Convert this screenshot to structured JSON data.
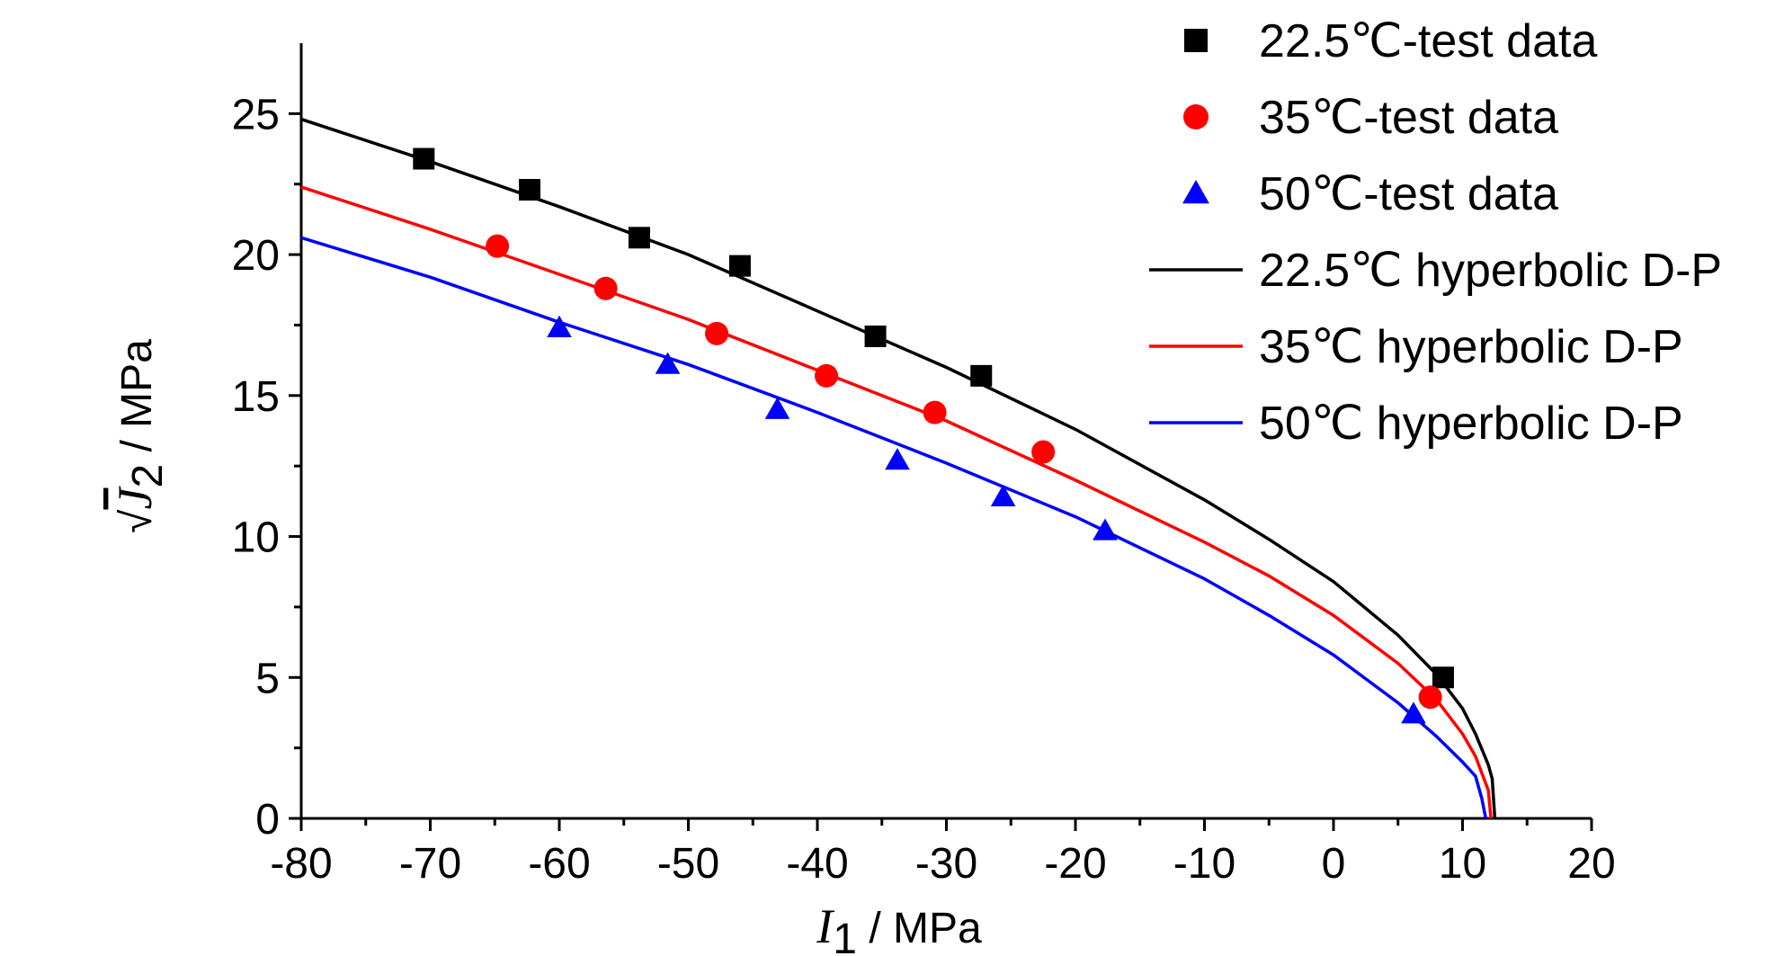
{
  "chart_data": {
    "type": "scatter",
    "xlabel": {
      "symbol": "I",
      "subscript": "1",
      "unit": " / MPa"
    },
    "ylabel": {
      "radical": "√",
      "symbol": "J",
      "subscript": "2",
      "unit": " / MPa"
    },
    "xlim": [
      -80,
      20
    ],
    "ylim": [
      0,
      27.5
    ],
    "xticks": [
      -80,
      -70,
      -60,
      -50,
      -40,
      -30,
      -20,
      -10,
      0,
      10,
      20
    ],
    "yticks": [
      0,
      5,
      10,
      15,
      20,
      25
    ],
    "grid": false,
    "legend_position": "top-right",
    "series": [
      {
        "name": "22.5℃-test data",
        "kind": "points",
        "marker": "square",
        "color": "#000000",
        "x": [
          -70.5,
          -62.3,
          -53.8,
          -46.0,
          -35.5,
          -27.3,
          8.5
        ],
        "y": [
          23.4,
          22.3,
          20.6,
          19.6,
          17.1,
          15.7,
          5.0
        ]
      },
      {
        "name": "35℃-test data",
        "kind": "points",
        "marker": "circle",
        "color": "#ff0000",
        "x": [
          -64.8,
          -56.4,
          -47.8,
          -39.3,
          -30.9,
          -22.5,
          7.5
        ],
        "y": [
          20.3,
          18.8,
          17.2,
          15.7,
          14.4,
          13.0,
          4.3
        ]
      },
      {
        "name": "50℃-test data",
        "kind": "points",
        "marker": "triangle",
        "color": "#0000ff",
        "x": [
          -60.0,
          -51.6,
          -43.1,
          -33.8,
          -25.6,
          -17.7,
          6.2
        ],
        "y": [
          17.4,
          16.1,
          14.5,
          12.7,
          11.4,
          10.2,
          3.7
        ]
      },
      {
        "name": "22.5℃ hyperbolic D-P",
        "kind": "line",
        "color": "#000000",
        "x": [
          -80,
          -70,
          -60,
          -50,
          -40,
          -30,
          -20,
          -10,
          -5,
          0,
          5,
          8,
          10,
          11,
          12,
          12.3,
          12.5
        ],
        "y": [
          24.8,
          23.3,
          21.7,
          20.0,
          18.0,
          16.0,
          13.8,
          11.3,
          9.9,
          8.4,
          6.5,
          5.1,
          3.9,
          3.0,
          1.9,
          1.4,
          0.0
        ]
      },
      {
        "name": "35℃ hyperbolic D-P",
        "kind": "line",
        "color": "#ff0000",
        "x": [
          -80,
          -70,
          -60,
          -50,
          -40,
          -30,
          -20,
          -10,
          -5,
          0,
          5,
          8,
          10,
          11,
          12,
          12.2
        ],
        "y": [
          22.4,
          20.9,
          19.3,
          17.7,
          15.9,
          14.1,
          12.0,
          9.8,
          8.6,
          7.2,
          5.5,
          4.2,
          3.0,
          2.2,
          1.0,
          0.0
        ]
      },
      {
        "name": "50℃ hyperbolic D-P",
        "kind": "line",
        "color": "#0000ff",
        "x": [
          -80,
          -70,
          -60,
          -50,
          -40,
          -30,
          -20,
          -10,
          -5,
          0,
          5,
          8,
          10,
          11,
          11.5,
          11.8
        ],
        "y": [
          20.6,
          19.2,
          17.6,
          16.1,
          14.4,
          12.6,
          10.7,
          8.5,
          7.2,
          5.8,
          4.1,
          2.9,
          2.0,
          1.5,
          0.7,
          0.0
        ]
      }
    ]
  }
}
